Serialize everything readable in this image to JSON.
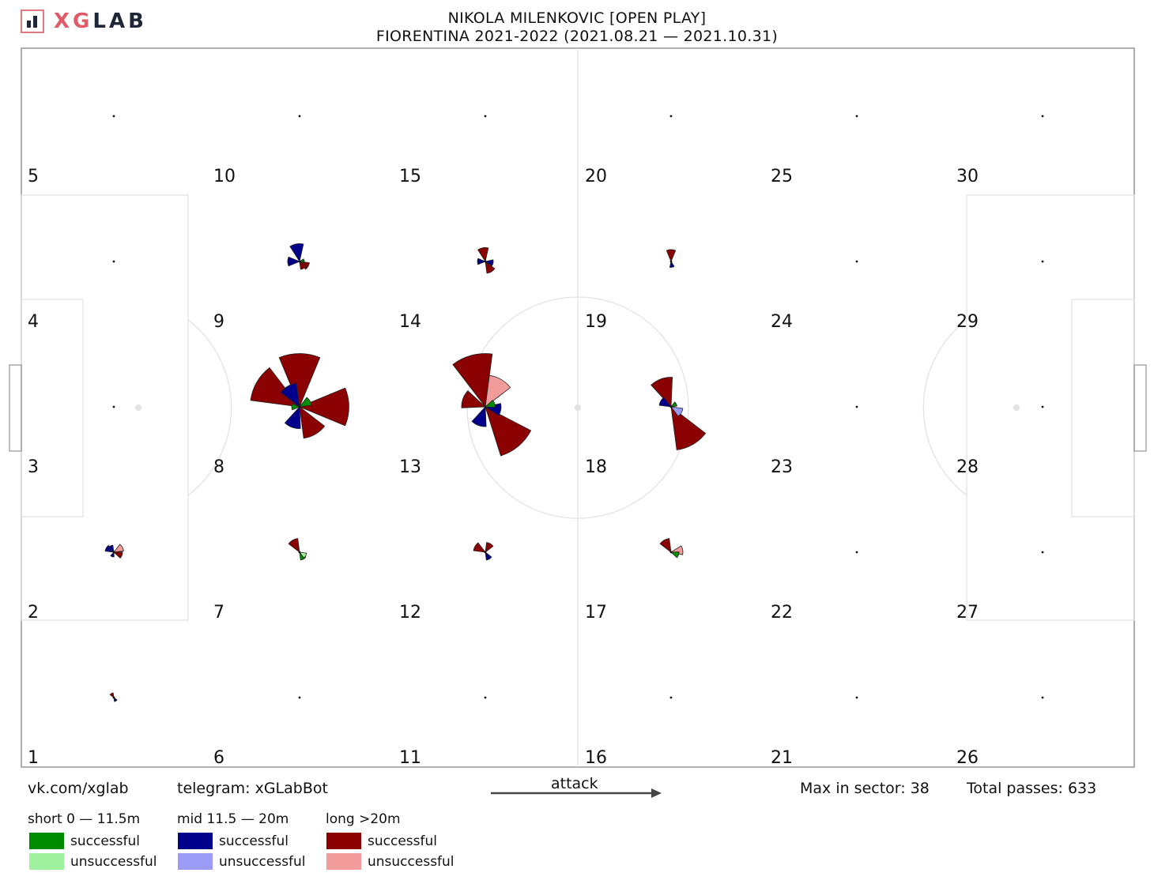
{
  "brand": {
    "logo_xg": "XG",
    "logo_lab": "LAB"
  },
  "title": {
    "line1": "NIKOLA MILENKOVIC [OPEN PLAY]",
    "line2": "FIORENTINA 2021-2022 (2021.08.21 — 2021.10.31)"
  },
  "footer": {
    "vk": "vk.com/xglab",
    "telegram": "telegram: xGLabBot",
    "attack": "attack",
    "max_sector": "Max in sector: 38",
    "total_passes": "Total passes: 633"
  },
  "legend": [
    {
      "label": "short 0 — 11.5m",
      "successful": "successful",
      "unsuccessful": "unsuccessful",
      "color_success": "#008c00",
      "color_fail": "#9ff09f"
    },
    {
      "label": "mid 11.5 — 20m",
      "successful": "successful",
      "unsuccessful": "unsuccessful",
      "color_success": "#00008b",
      "color_fail": "#9a9cf7"
    },
    {
      "label": "long >20m",
      "successful": "successful",
      "unsuccessful": "unsuccessful",
      "color_success": "#8b0000",
      "color_fail": "#f29b9b"
    }
  ],
  "chart_data": {
    "type": "pitch-pass-rose",
    "max_in_sector": 38,
    "total_passes": 633,
    "zone_labels": [
      "1",
      "2",
      "3",
      "4",
      "5",
      "6",
      "7",
      "8",
      "9",
      "10",
      "11",
      "12",
      "13",
      "14",
      "15",
      "16",
      "17",
      "18",
      "19",
      "20",
      "21",
      "22",
      "23",
      "24",
      "25",
      "26",
      "27",
      "28",
      "29",
      "30"
    ],
    "roses": [
      {
        "zone": 2,
        "sectors": [
          {
            "dir": 60,
            "len": 0.25,
            "b": "long_fail"
          },
          {
            "dir": 110,
            "len": 0.22,
            "b": "long_ok"
          },
          {
            "dir": 300,
            "len": 0.22,
            "b": "mid_ok"
          },
          {
            "dir": 330,
            "len": 0.18,
            "b": "mid_ok"
          },
          {
            "dir": 200,
            "len": 0.12,
            "b": "mid_ok"
          }
        ]
      },
      {
        "zone": 1,
        "sectors": [
          {
            "dir": 330,
            "len": 0.12,
            "b": "long_ok"
          },
          {
            "dir": 150,
            "len": 0.1,
            "b": "mid_ok"
          }
        ]
      },
      {
        "zone": 9,
        "sectors": [
          {
            "dir": 350,
            "len": 0.45,
            "b": "mid_ok"
          },
          {
            "dir": 270,
            "len": 0.3,
            "b": "mid_ok"
          },
          {
            "dir": 120,
            "len": 0.25,
            "b": "long_ok"
          },
          {
            "dir": 150,
            "len": 0.2,
            "b": "long_ok"
          },
          {
            "dir": 80,
            "len": 0.12,
            "b": "short_ok"
          }
        ]
      },
      {
        "zone": 8,
        "sectors": [
          {
            "dir": 300,
            "len": 1.25,
            "b": "long_ok"
          },
          {
            "dir": 0,
            "len": 1.35,
            "b": "long_ok"
          },
          {
            "dir": 90,
            "len": 1.25,
            "b": "long_ok"
          },
          {
            "dir": 150,
            "len": 0.8,
            "b": "long_ok"
          },
          {
            "dir": 200,
            "len": 0.55,
            "b": "mid_ok"
          },
          {
            "dir": 330,
            "len": 0.6,
            "b": "mid_ok"
          },
          {
            "dir": 60,
            "len": 0.3,
            "b": "short_ok"
          },
          {
            "dir": 270,
            "len": 0.2,
            "b": "short_ok"
          }
        ]
      },
      {
        "zone": 7,
        "sectors": [
          {
            "dir": 330,
            "len": 0.35,
            "b": "long_ok"
          },
          {
            "dir": 150,
            "len": 0.2,
            "b": "short_ok"
          },
          {
            "dir": 120,
            "len": 0.18,
            "b": "short_fail"
          }
        ]
      },
      {
        "zone": 14,
        "sectors": [
          {
            "dir": 350,
            "len": 0.35,
            "b": "long_ok"
          },
          {
            "dir": 150,
            "len": 0.3,
            "b": "long_ok"
          },
          {
            "dir": 270,
            "len": 0.2,
            "b": "mid_ok"
          },
          {
            "dir": 100,
            "len": 0.2,
            "b": "mid_ok"
          }
        ]
      },
      {
        "zone": 13,
        "sectors": [
          {
            "dir": 345,
            "len": 1.35,
            "b": "long_ok"
          },
          {
            "dir": 30,
            "len": 0.8,
            "b": "long_fail"
          },
          {
            "dir": 140,
            "len": 1.3,
            "b": "long_ok"
          },
          {
            "dir": 290,
            "len": 0.6,
            "b": "long_ok"
          },
          {
            "dir": 200,
            "len": 0.5,
            "b": "mid_ok"
          },
          {
            "dir": 100,
            "len": 0.4,
            "b": "mid_ok"
          },
          {
            "dir": 70,
            "len": 0.25,
            "b": "short_ok"
          }
        ]
      },
      {
        "zone": 12,
        "sectors": [
          {
            "dir": 300,
            "len": 0.3,
            "b": "long_ok"
          },
          {
            "dir": 30,
            "len": 0.25,
            "b": "long_ok"
          },
          {
            "dir": 150,
            "len": 0.2,
            "b": "mid_ok"
          }
        ]
      },
      {
        "zone": 19,
        "sectors": [
          {
            "dir": 0,
            "len": 0.3,
            "b": "long_ok"
          },
          {
            "dir": 170,
            "len": 0.15,
            "b": "mid_ok"
          }
        ]
      },
      {
        "zone": 18,
        "sectors": [
          {
            "dir": 340,
            "len": 0.75,
            "b": "long_ok"
          },
          {
            "dir": 150,
            "len": 1.1,
            "b": "long_ok"
          },
          {
            "dir": 300,
            "len": 0.3,
            "b": "mid_ok"
          },
          {
            "dir": 120,
            "len": 0.3,
            "b": "mid_fail"
          },
          {
            "dir": 60,
            "len": 0.15,
            "b": "short_ok"
          }
        ]
      },
      {
        "zone": 17,
        "sectors": [
          {
            "dir": 330,
            "len": 0.35,
            "b": "long_ok"
          },
          {
            "dir": 80,
            "len": 0.3,
            "b": "long_fail"
          },
          {
            "dir": 110,
            "len": 0.2,
            "b": "short_ok"
          }
        ]
      }
    ]
  }
}
